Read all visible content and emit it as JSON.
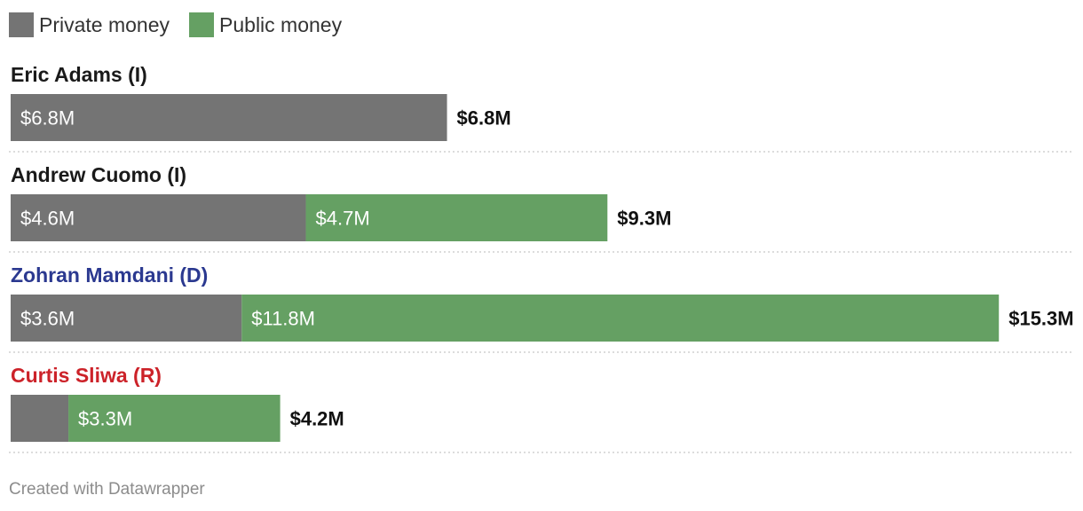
{
  "chart_data": {
    "type": "bar",
    "orientation": "horizontal",
    "stacked": true,
    "legend": {
      "placement": "top-left",
      "items": [
        {
          "key": "private",
          "label": "Private money",
          "color": "#747474"
        },
        {
          "key": "public",
          "label": "Public money",
          "color": "#65a063"
        }
      ]
    },
    "rows": [
      {
        "name": "Eric Adams (I)",
        "name_color": "#1a1a1a",
        "segments": [
          {
            "series": "private",
            "value": 6.8,
            "label": "$6.8M"
          }
        ],
        "total": 6.8,
        "total_label": "$6.8M"
      },
      {
        "name": "Andrew Cuomo (I)",
        "name_color": "#1a1a1a",
        "segments": [
          {
            "series": "private",
            "value": 4.6,
            "label": "$4.6M"
          },
          {
            "series": "public",
            "value": 4.7,
            "label": "$4.7M"
          }
        ],
        "total": 9.3,
        "total_label": "$9.3M"
      },
      {
        "name": "Zohran Mamdani (D)",
        "name_color": "#2b3990",
        "segments": [
          {
            "series": "private",
            "value": 3.6,
            "label": "$3.6M"
          },
          {
            "series": "public",
            "value": 11.8,
            "label": "$11.8M"
          }
        ],
        "total": 15.3,
        "total_label": "$15.3M"
      },
      {
        "name": "Curtis Sliwa (R)",
        "name_color": "#cc2229",
        "segments": [
          {
            "series": "private",
            "value": 0.9,
            "label": ""
          },
          {
            "series": "public",
            "value": 3.3,
            "label": "$3.3M"
          }
        ],
        "total": 4.2,
        "total_label": "$4.2M"
      }
    ],
    "xlim": [
      0,
      15.3
    ]
  },
  "footer": {
    "credit": "Created with Datawrapper"
  }
}
